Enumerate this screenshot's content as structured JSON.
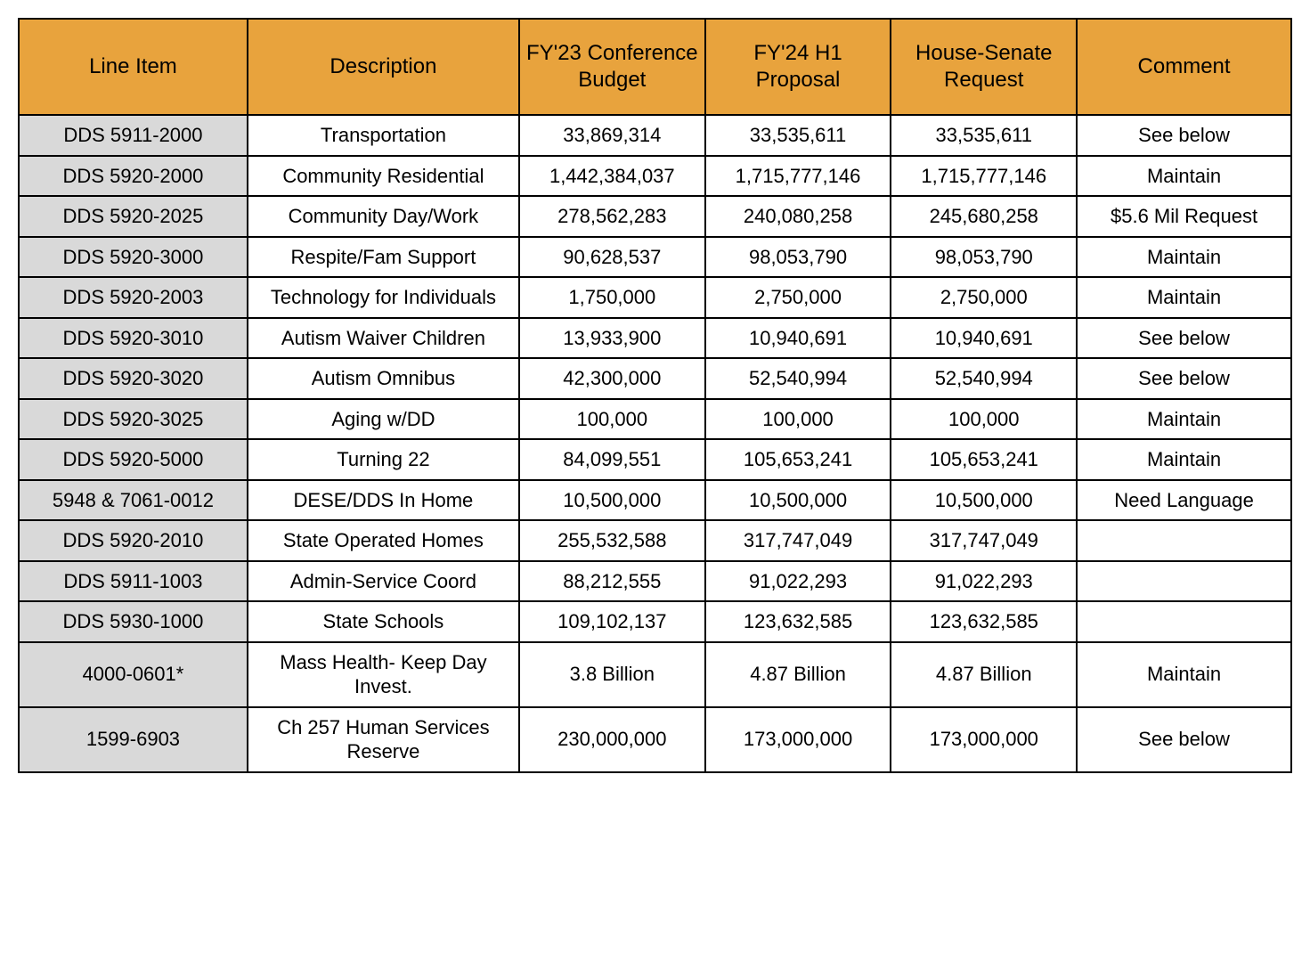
{
  "table": {
    "header_bg": "#e8a33d",
    "header_color": "#000000",
    "lineitem_bg": "#d9d9d9",
    "cell_bg": "#ffffff",
    "header_fontsize": 24,
    "cell_fontsize": 22,
    "columns": [
      "Line Item",
      "Description",
      "FY'23 Conference Budget",
      "FY'24 H1 Proposal",
      "House-Senate Request",
      "Comment"
    ],
    "rows": [
      {
        "line_item": "DDS 5911-2000",
        "description": "Transportation",
        "fy23": "33,869,314",
        "fy24": "33,535,611",
        "hsr": "33,535,611",
        "comment": "See below"
      },
      {
        "line_item": "DDS 5920-2000",
        "description": "Community Residential",
        "fy23": "1,442,384,037",
        "fy24": "1,715,777,146",
        "hsr": "1,715,777,146",
        "comment": "Maintain"
      },
      {
        "line_item": "DDS 5920-2025",
        "description": "Community Day/Work",
        "fy23": "278,562,283",
        "fy24": "240,080,258",
        "hsr": "245,680,258",
        "comment": "$5.6 Mil Request"
      },
      {
        "line_item": "DDS 5920-3000",
        "description": "Respite/Fam Support",
        "fy23": "90,628,537",
        "fy24": "98,053,790",
        "hsr": "98,053,790",
        "comment": "Maintain"
      },
      {
        "line_item": "DDS 5920-2003",
        "description": "Technology for Individuals",
        "fy23": "1,750,000",
        "fy24": "2,750,000",
        "hsr": "2,750,000",
        "comment": "Maintain"
      },
      {
        "line_item": "DDS 5920-3010",
        "description": "Autism Waiver Children",
        "fy23": "13,933,900",
        "fy24": "10,940,691",
        "hsr": "10,940,691",
        "comment": "See below"
      },
      {
        "line_item": "DDS 5920-3020",
        "description": "Autism Omnibus",
        "fy23": "42,300,000",
        "fy24": "52,540,994",
        "hsr": "52,540,994",
        "comment": "See below"
      },
      {
        "line_item": "DDS 5920-3025",
        "description": "Aging w/DD",
        "fy23": "100,000",
        "fy24": "100,000",
        "hsr": "100,000",
        "comment": "Maintain"
      },
      {
        "line_item": "DDS 5920-5000",
        "description": "Turning 22",
        "fy23": "84,099,551",
        "fy24": "105,653,241",
        "hsr": "105,653,241",
        "comment": "Maintain"
      },
      {
        "line_item": "5948 & 7061-0012",
        "description": "DESE/DDS In Home",
        "fy23": "10,500,000",
        "fy24": "10,500,000",
        "hsr": "10,500,000",
        "comment": "Need Language"
      },
      {
        "line_item": "DDS 5920-2010",
        "description": "State Operated Homes",
        "fy23": "255,532,588",
        "fy24": "317,747,049",
        "hsr": "317,747,049",
        "comment": ""
      },
      {
        "line_item": "DDS 5911-1003",
        "description": "Admin-Service Coord",
        "fy23": "88,212,555",
        "fy24": "91,022,293",
        "hsr": "91,022,293",
        "comment": ""
      },
      {
        "line_item": "DDS 5930-1000",
        "description": "State Schools",
        "fy23": "109,102,137",
        "fy24": "123,632,585",
        "hsr": "123,632,585",
        "comment": ""
      },
      {
        "line_item": "4000-0601*",
        "description": "Mass Health- Keep Day Invest.",
        "fy23": "3.8 Billion",
        "fy24": "4.87 Billion",
        "hsr": "4.87 Billion",
        "comment": "Maintain"
      },
      {
        "line_item": "1599-6903",
        "description": "Ch 257 Human Services Reserve",
        "fy23": "230,000,000",
        "fy24": "173,000,000",
        "hsr": "173,000,000",
        "comment": "See below"
      }
    ]
  }
}
